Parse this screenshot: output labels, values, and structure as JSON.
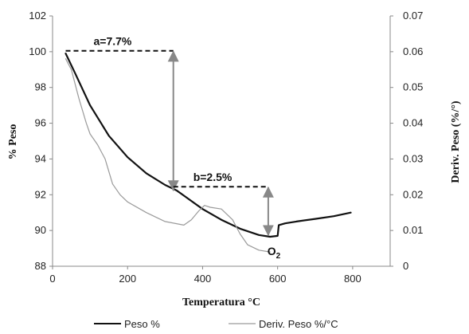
{
  "chart_data": {
    "type": "line",
    "xlabel": "Temperatura °C",
    "ylabel": "% Peso",
    "y2label": "Deriv. Peso (%/°)",
    "xlim": [
      0,
      900
    ],
    "ylim": [
      88,
      102
    ],
    "y2lim": [
      0,
      0.07
    ],
    "xticks": [
      0,
      200,
      400,
      600,
      800
    ],
    "yticks": [
      88,
      90,
      92,
      94,
      96,
      98,
      100,
      102
    ],
    "y2ticks": [
      0,
      0.01,
      0.02,
      0.03,
      0.04,
      0.05,
      0.06,
      0.07
    ],
    "xtick_labels": [
      "0",
      "200",
      "400",
      "600",
      "800"
    ],
    "ytick_labels": [
      "88",
      "90",
      "92",
      "94",
      "96",
      "98",
      "100",
      "102"
    ],
    "y2tick_labels": [
      "0",
      "0.01",
      "0.02",
      "0.03",
      "0.04",
      "0.05",
      "0.06",
      "0.07"
    ],
    "grid": false,
    "legend_position": "bottom",
    "series": [
      {
        "name": "Peso %",
        "axis": "left",
        "color": "#111111",
        "x": [
          35,
          60,
          100,
          150,
          200,
          250,
          300,
          330,
          350,
          400,
          450,
          500,
          550,
          580,
          600,
          603,
          620,
          650,
          700,
          750,
          795
        ],
        "y": [
          99.9,
          98.8,
          97.0,
          95.3,
          94.1,
          93.2,
          92.55,
          92.25,
          91.95,
          91.2,
          90.6,
          90.1,
          89.75,
          89.65,
          89.7,
          90.3,
          90.4,
          90.5,
          90.65,
          90.8,
          91.0
        ]
      },
      {
        "name": "Deriv. Peso %/°C",
        "axis": "right",
        "color": "#9a9a9a",
        "x": [
          35,
          50,
          70,
          90,
          100,
          120,
          140,
          160,
          180,
          200,
          250,
          300,
          350,
          370,
          390,
          405,
          420,
          450,
          480,
          500,
          520,
          550,
          580
        ],
        "y": [
          0.058,
          0.055,
          0.047,
          0.04,
          0.037,
          0.034,
          0.03,
          0.023,
          0.02,
          0.018,
          0.015,
          0.0125,
          0.0115,
          0.013,
          0.0155,
          0.017,
          0.0165,
          0.016,
          0.013,
          0.009,
          0.006,
          0.0045,
          0.004
        ]
      }
    ],
    "annotations": [
      {
        "id": "a",
        "text": "a=7.7%",
        "y_top": 100.05,
        "y_bottom": 92.2,
        "x_arrow": 322,
        "x_line_start": 35,
        "x_line_end": 322
      },
      {
        "id": "b",
        "text": "b=2.5%",
        "y_top": 92.45,
        "y_bottom": 89.7,
        "x_arrow": 575,
        "x_line_start": 322,
        "x_line_end": 575
      },
      {
        "id": "o2",
        "text": "O",
        "sub": "2",
        "x": 598,
        "y": 88.9
      }
    ]
  }
}
